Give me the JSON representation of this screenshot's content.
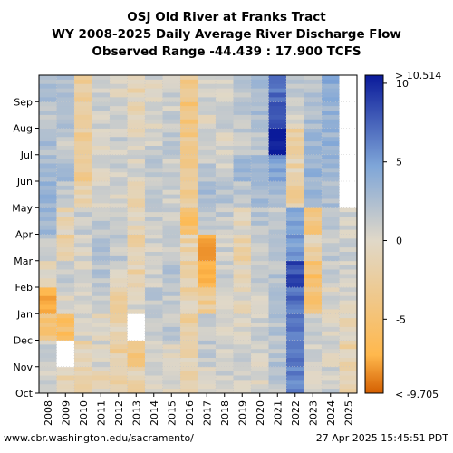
{
  "title": {
    "line1": "OSJ Old River at Franks Tract",
    "line2": "WY 2008-2025 Daily Average River Discharge Flow",
    "line3": "Observed Range -44.439 : 17.900 TCFS"
  },
  "footer": {
    "left": "www.cbr.washington.edu/sacramento/",
    "right": "27 Apr 2025 15:45:51 PDT"
  },
  "colors": {
    "negative_extreme": "#d45f00",
    "negative_mid": "#ffb84d",
    "neutral": "#e0d8c8",
    "positive_mid": "#7fa6d8",
    "positive_extreme": "#0a1a9a",
    "missing": "#ffffff"
  },
  "chart_data": {
    "type": "heatmap",
    "x": [
      "2008",
      "2009",
      "2010",
      "2011",
      "2012",
      "2013",
      "2014",
      "2015",
      "2016",
      "2017",
      "2018",
      "2019",
      "2020",
      "2021",
      "2022",
      "2023",
      "2024",
      "2025"
    ],
    "y": [
      "Oct",
      "Nov",
      "Dec",
      "Jan",
      "Feb",
      "Mar",
      "Apr",
      "May",
      "Jun",
      "Jul",
      "Aug",
      "Sep"
    ],
    "xlabel": "",
    "ylabel": "",
    "colorbar": {
      "ticks": [
        -5,
        0,
        5,
        10
      ],
      "range": [
        -9.705,
        10.514
      ],
      "max_label": "> 10.514",
      "min_label": "< -9.705",
      "units": "TCFS"
    },
    "monthly_mean_values": [
      [
        0.5,
        1.0,
        -3.0,
        -5.5,
        -0.5,
        1.5,
        3.0,
        3.5,
        3.0,
        2.5,
        2.0,
        2.5
      ],
      [
        -0.5,
        null,
        -4.0,
        0.5,
        1.0,
        -1.5,
        -0.5,
        1.5,
        2.5,
        1.5,
        2.0,
        2.5
      ],
      [
        -1.0,
        -1.0,
        0.5,
        1.0,
        0.5,
        0.5,
        1.0,
        -1.0,
        -2.0,
        -1.5,
        -1.5,
        -2.0
      ],
      [
        -0.5,
        0.5,
        -0.5,
        1.0,
        2.0,
        2.0,
        1.5,
        0.5,
        0.5,
        0.5,
        1.0,
        1.0
      ],
      [
        -1.0,
        -1.5,
        -1.0,
        -2.0,
        0.5,
        1.5,
        0.5,
        0.5,
        1.0,
        1.0,
        0.5,
        0.5
      ],
      [
        -1.0,
        -2.5,
        null,
        0.5,
        -1.0,
        -1.0,
        0.0,
        -0.5,
        0.5,
        0.0,
        -0.5,
        -0.5
      ],
      [
        0.5,
        0.5,
        1.0,
        1.5,
        1.0,
        1.0,
        1.0,
        1.5,
        1.5,
        1.0,
        0.5,
        0.5
      ],
      [
        0.5,
        0.5,
        1.5,
        1.5,
        2.0,
        1.5,
        1.0,
        1.0,
        1.0,
        1.5,
        1.0,
        1.0
      ],
      [
        -1.0,
        -1.0,
        -1.5,
        -1.0,
        -1.5,
        -1.0,
        -4.0,
        -2.0,
        -2.5,
        -2.5,
        -3.0,
        -2.0
      ],
      [
        0.5,
        1.5,
        1.0,
        -2.0,
        -5.5,
        -6.0,
        1.5,
        2.5,
        1.5,
        0.5,
        0.5,
        1.0
      ],
      [
        1.0,
        1.0,
        0.5,
        0.5,
        1.0,
        1.0,
        1.5,
        2.0,
        1.0,
        0.5,
        1.0,
        1.0
      ],
      [
        1.0,
        1.0,
        0.5,
        0.0,
        -0.5,
        -1.5,
        0.0,
        1.5,
        3.5,
        1.5,
        1.5,
        1.5
      ],
      [
        0.5,
        0.5,
        1.0,
        1.0,
        1.5,
        1.5,
        2.0,
        2.5,
        2.5,
        2.0,
        2.5,
        2.5
      ],
      [
        1.5,
        2.0,
        2.0,
        2.5,
        2.0,
        2.0,
        1.5,
        3.0,
        5.0,
        10.5,
        8.0,
        7.0
      ],
      [
        6.0,
        6.5,
        6.5,
        7.0,
        8.5,
        5.0,
        4.5,
        -1.5,
        -1.0,
        -1.0,
        0.5,
        1.5
      ],
      [
        0.5,
        0.5,
        1.0,
        -3.0,
        -3.5,
        -1.0,
        -3.0,
        3.0,
        3.5,
        3.0,
        2.5,
        2.0
      ],
      [
        1.0,
        0.5,
        0.5,
        0.5,
        1.0,
        1.5,
        2.0,
        2.5,
        3.5,
        3.5,
        3.5,
        4.0
      ],
      [
        -1.0,
        -1.0,
        -0.5,
        0.5,
        1.0,
        1.0,
        1.0,
        null,
        null,
        null,
        null,
        null
      ]
    ],
    "grid": true
  }
}
